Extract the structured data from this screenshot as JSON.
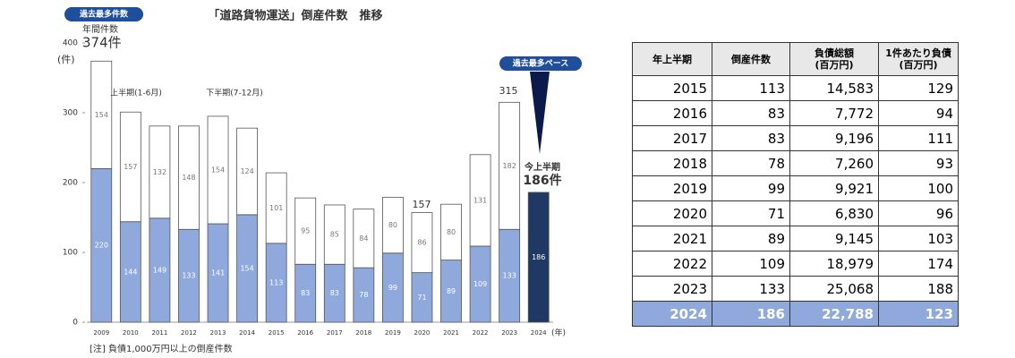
{
  "chart_data": {
    "type": "stacked_bar",
    "title": "「道路貨物運送」倒産件数　推移",
    "y_unit": "(件)",
    "x_unit": "(年)",
    "categories": [
      "2009",
      "2010",
      "2011",
      "2012",
      "2013",
      "2014",
      "2015",
      "2016",
      "2017",
      "2018",
      "2019",
      "2020",
      "2021",
      "2022",
      "2023",
      "2024"
    ],
    "series": [
      {
        "name": "上半期(1-6月)",
        "color": "#8fa9dc",
        "colors": [
          "#8fa9dc",
          "#8fa9dc",
          "#8fa9dc",
          "#8fa9dc",
          "#8fa9dc",
          "#8fa9dc",
          "#8fa9dc",
          "#8fa9dc",
          "#8fa9dc",
          "#8fa9dc",
          "#8fa9dc",
          "#8fa9dc",
          "#8fa9dc",
          "#8fa9dc",
          "#8fa9dc",
          "#1f3864"
        ],
        "values": [
          220,
          144,
          149,
          133,
          141,
          154,
          113,
          83,
          83,
          78,
          99,
          71,
          89,
          109,
          133,
          186
        ]
      },
      {
        "name": "下半期(7-12月)",
        "color": "#ffffff",
        "values": [
          154,
          157,
          132,
          148,
          154,
          124,
          101,
          95,
          85,
          84,
          80,
          86,
          80,
          131,
          182,
          null
        ]
      }
    ],
    "ylim": [
      0,
      400
    ],
    "yticks": [
      0,
      100,
      200,
      300,
      400
    ],
    "annotations": [
      "過去最多件数",
      "年間件数",
      "374件",
      "157",
      "315",
      "過去最多ペース",
      "今上半期",
      "186件"
    ],
    "note": "[注] 負債1,000万円以上の倒産件数"
  },
  "table": {
    "header": [
      "年上半期",
      "倒産件数",
      "負債総額\n(百万円)",
      "1件あたり負債\n(百万円)"
    ],
    "rows": [
      [
        "2015",
        "113",
        "14,583",
        "129"
      ],
      [
        "2016",
        "83",
        "7,772",
        "94"
      ],
      [
        "2017",
        "83",
        "9,196",
        "111"
      ],
      [
        "2018",
        "78",
        "7,260",
        "93"
      ],
      [
        "2019",
        "99",
        "9,921",
        "100"
      ],
      [
        "2020",
        "71",
        "6,830",
        "96"
      ],
      [
        "2021",
        "89",
        "9,145",
        "103"
      ],
      [
        "2022",
        "109",
        "18,979",
        "174"
      ],
      [
        "2023",
        "133",
        "25,068",
        "188"
      ],
      [
        "2024",
        "186",
        "22,788",
        "123"
      ]
    ]
  }
}
